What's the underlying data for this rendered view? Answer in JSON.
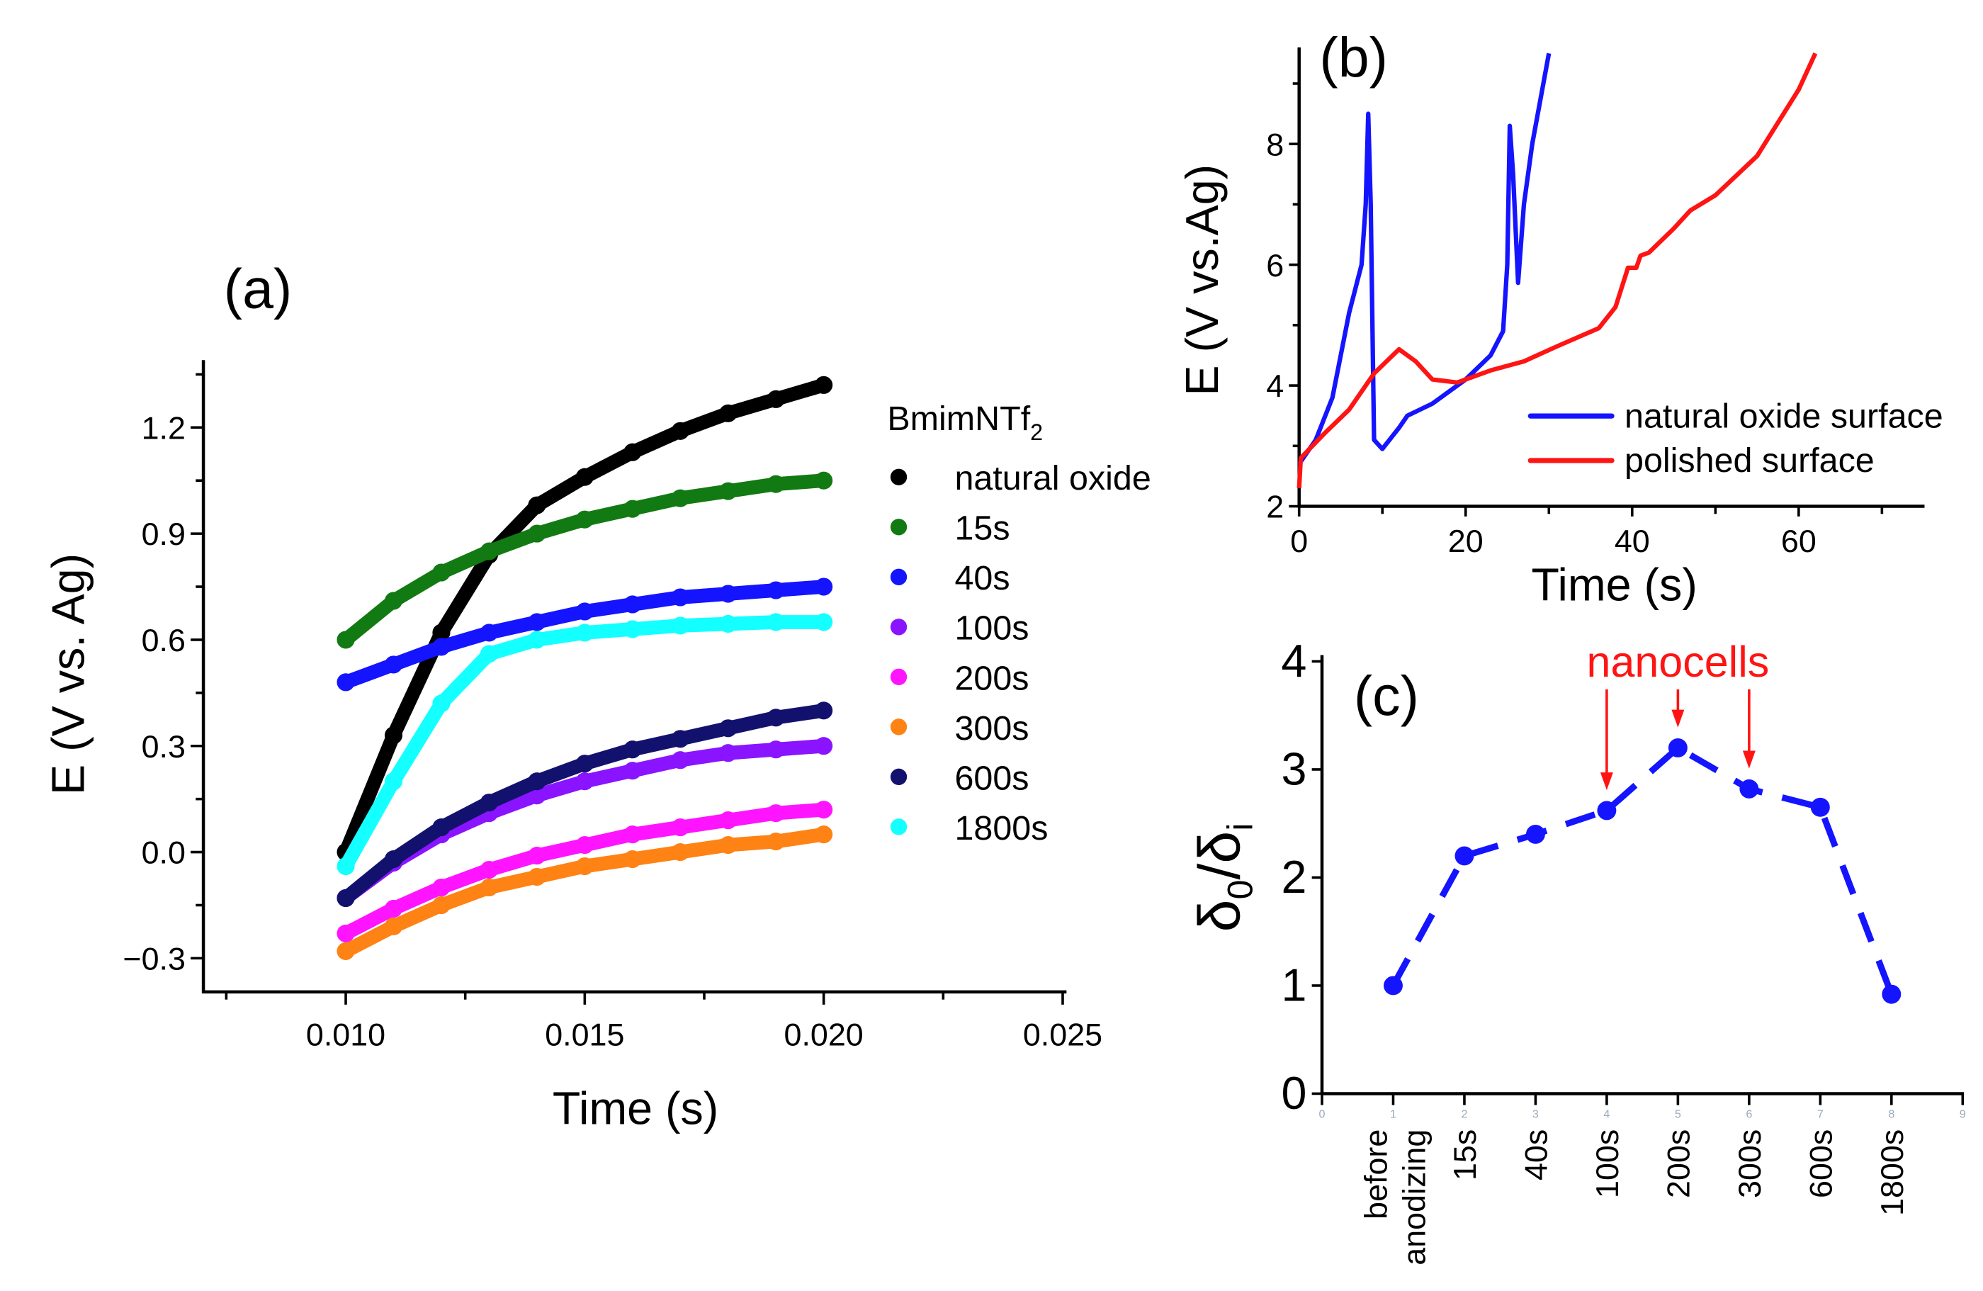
{
  "chart_data": [
    {
      "panel": "(a)",
      "type": "scatter",
      "xlabel": "Time (s)",
      "ylabel": "E  (V vs. Ag)",
      "xlim": [
        0.007,
        0.025
      ],
      "ylim": [
        -0.4,
        1.4
      ],
      "xticks": [
        "0.010",
        "0.015",
        "0.020",
        "0.025"
      ],
      "xtick_values": [
        0.01,
        0.015,
        0.02,
        0.025
      ],
      "yticks": [
        "−0.3",
        "0.0",
        "0.3",
        "0.6",
        "0.9",
        "1.2"
      ],
      "ytick_values": [
        -0.3,
        0.0,
        0.3,
        0.6,
        0.9,
        1.2
      ],
      "legend_title": "BmimNTf",
      "legend_title_sub": "2",
      "legend_position": "right",
      "x": [
        0.01,
        0.011,
        0.012,
        0.013,
        0.014,
        0.015,
        0.016,
        0.017,
        0.018,
        0.019,
        0.02
      ],
      "series": [
        {
          "name": "natural oxide",
          "color": "#000000",
          "values": [
            0.0,
            0.33,
            0.62,
            0.84,
            0.98,
            1.06,
            1.13,
            1.19,
            1.24,
            1.28,
            1.32
          ]
        },
        {
          "name": "15s",
          "color": "#127a12",
          "values": [
            0.6,
            0.71,
            0.79,
            0.85,
            0.9,
            0.94,
            0.97,
            1.0,
            1.02,
            1.04,
            1.05
          ]
        },
        {
          "name": "40s",
          "color": "#1414ff",
          "values": [
            0.48,
            0.53,
            0.58,
            0.62,
            0.65,
            0.68,
            0.7,
            0.72,
            0.73,
            0.74,
            0.75
          ]
        },
        {
          "name": "100s",
          "color": "#8a14ff",
          "values": [
            -0.13,
            -0.03,
            0.05,
            0.11,
            0.16,
            0.2,
            0.23,
            0.26,
            0.28,
            0.29,
            0.3
          ]
        },
        {
          "name": "200s",
          "color": "#ff14ff",
          "values": [
            -0.23,
            -0.16,
            -0.1,
            -0.05,
            -0.01,
            0.02,
            0.05,
            0.07,
            0.09,
            0.11,
            0.12
          ]
        },
        {
          "name": "300s",
          "color": "#ff8214",
          "values": [
            -0.28,
            -0.21,
            -0.15,
            -0.1,
            -0.07,
            -0.04,
            -0.02,
            0.0,
            0.02,
            0.03,
            0.05
          ]
        },
        {
          "name": "600s",
          "color": "#12126e",
          "values": [
            -0.13,
            -0.02,
            0.07,
            0.14,
            0.2,
            0.25,
            0.29,
            0.32,
            0.35,
            0.38,
            0.4
          ]
        },
        {
          "name": "1800s",
          "color": "#14ffff",
          "values": [
            -0.04,
            0.2,
            0.42,
            0.56,
            0.6,
            0.62,
            0.63,
            0.64,
            0.645,
            0.65,
            0.65
          ]
        }
      ]
    },
    {
      "panel": "(b)",
      "type": "line",
      "xlabel": "Time (s)",
      "ylabel": "E (V vs.Ag)",
      "xlim": [
        0,
        75
      ],
      "ylim": [
        2,
        9.5
      ],
      "xticks": [
        "0",
        "20",
        "40",
        "60"
      ],
      "xtick_values": [
        0,
        20,
        40,
        60
      ],
      "yticks": [
        "2",
        "4",
        "6",
        "8"
      ],
      "ytick_values": [
        2,
        4,
        6,
        8
      ],
      "legend_position": "bottom-right",
      "series": [
        {
          "name": "natural oxide surface",
          "color": "#1414ff",
          "points": [
            [
              0,
              2.7
            ],
            [
              2,
              3.1
            ],
            [
              4,
              3.8
            ],
            [
              6,
              5.2
            ],
            [
              7.5,
              6.0
            ],
            [
              8,
              7.0
            ],
            [
              8.3,
              8.5
            ],
            [
              8.6,
              7.0
            ],
            [
              9,
              3.1
            ],
            [
              10,
              2.95
            ],
            [
              12,
              3.3
            ],
            [
              13,
              3.5
            ],
            [
              16,
              3.7
            ],
            [
              20,
              4.1
            ],
            [
              23,
              4.5
            ],
            [
              24.5,
              4.9
            ],
            [
              25,
              6.0
            ],
            [
              25.3,
              8.3
            ],
            [
              25.7,
              7.5
            ],
            [
              26.3,
              5.7
            ],
            [
              27,
              7.0
            ],
            [
              28,
              8.0
            ],
            [
              30,
              9.5
            ]
          ]
        },
        {
          "name": "polished surface",
          "color": "#ff1414",
          "points": [
            [
              0,
              2.3
            ],
            [
              0.2,
              2.8
            ],
            [
              3,
              3.2
            ],
            [
              6,
              3.6
            ],
            [
              9,
              4.2
            ],
            [
              12,
              4.6
            ],
            [
              14,
              4.4
            ],
            [
              16,
              4.1
            ],
            [
              19,
              4.05
            ],
            [
              23,
              4.25
            ],
            [
              27,
              4.4
            ],
            [
              31,
              4.65
            ],
            [
              36,
              4.95
            ],
            [
              38,
              5.3
            ],
            [
              39.5,
              5.95
            ],
            [
              40.5,
              5.95
            ],
            [
              41,
              6.15
            ],
            [
              42,
              6.2
            ],
            [
              45,
              6.6
            ],
            [
              47,
              6.9
            ],
            [
              50,
              7.15
            ],
            [
              55,
              7.8
            ],
            [
              60,
              8.9
            ],
            [
              62,
              9.5
            ]
          ]
        }
      ]
    },
    {
      "panel": "(c)",
      "type": "line",
      "style": "dashed with markers",
      "color": "#1414ff",
      "ylabel_main": "δ",
      "ylabel_sub0": "0",
      "ylabel_div": "/δ",
      "ylabel_sub1": "i",
      "ylim": [
        0,
        4
      ],
      "xlim": [
        0,
        9
      ],
      "yticks": [
        "0",
        "1",
        "2",
        "3",
        "4"
      ],
      "ytick_values": [
        0,
        1,
        2,
        3,
        4
      ],
      "faint_xticks": [
        "0",
        "1",
        "2",
        "3",
        "4",
        "5",
        "6",
        "7",
        "8",
        "9"
      ],
      "categories": [
        "before anodizing",
        "15s",
        "40s",
        "100s",
        "200s",
        "300s",
        "600s",
        "1800s"
      ],
      "category_labels": [
        [
          "before",
          "anodizing"
        ],
        [
          "15s"
        ],
        [
          "40s"
        ],
        [
          "100s"
        ],
        [
          "200s"
        ],
        [
          "300s"
        ],
        [
          "600s"
        ],
        [
          "1800s"
        ]
      ],
      "values": [
        1.0,
        2.2,
        2.4,
        2.62,
        3.2,
        2.82,
        2.65,
        0.92
      ],
      "annotation": {
        "text": "nanocells",
        "color": "#ff1414",
        "points_to": [
          "100s",
          "200s",
          "300s"
        ]
      }
    }
  ]
}
